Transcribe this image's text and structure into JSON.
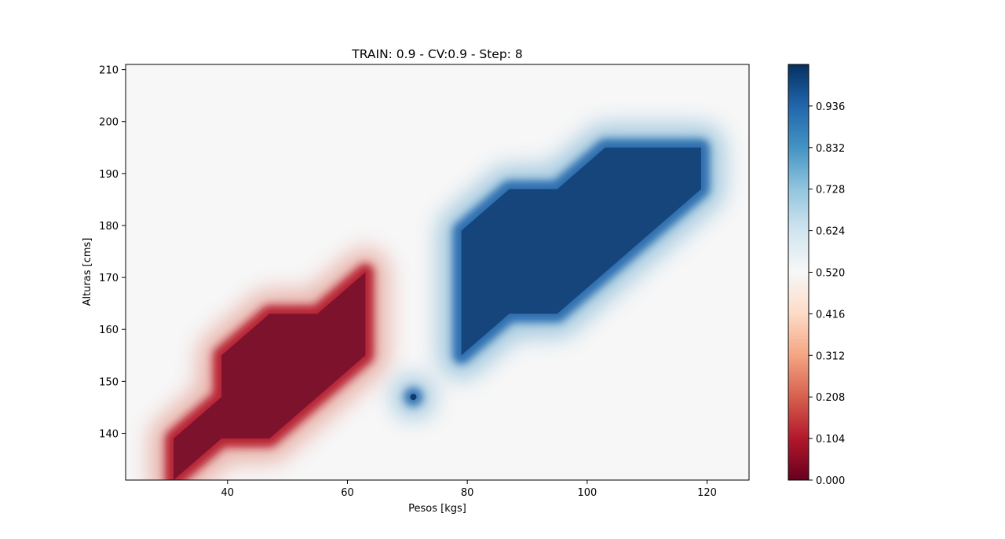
{
  "chart_data": {
    "type": "heatmap",
    "title": "TRAIN: 0.9 - CV:0.9 - Step: 8",
    "xlabel": "Pesos [kgs]",
    "ylabel": "Alturas [cms]",
    "xlim": [
      23,
      127
    ],
    "ylim": [
      131,
      211
    ],
    "xticks": [
      40,
      60,
      80,
      100,
      120
    ],
    "yticks": [
      140,
      150,
      160,
      170,
      180,
      190,
      200,
      210
    ],
    "grid": false,
    "colormap": "RdBu",
    "colorbar": {
      "range": [
        0.0,
        1.04
      ],
      "ticks": [
        0.0,
        0.104,
        0.208,
        0.312,
        0.416,
        0.52,
        0.624,
        0.728,
        0.832,
        0.936
      ],
      "tick_labels": [
        "0.000",
        "0.104",
        "0.208",
        "0.312",
        "0.416",
        "0.520",
        "0.624",
        "0.728",
        "0.832",
        "0.936"
      ]
    },
    "background_value": 0.52,
    "regions": [
      {
        "class": "low",
        "value": 0.0,
        "vertices": [
          [
            31,
            131
          ],
          [
            31,
            139
          ],
          [
            39,
            147
          ],
          [
            39,
            155
          ],
          [
            47,
            163
          ],
          [
            55,
            163
          ],
          [
            63,
            171
          ],
          [
            63,
            155
          ],
          [
            55,
            147
          ],
          [
            47,
            139
          ],
          [
            39,
            139
          ],
          [
            31,
            131
          ]
        ]
      },
      {
        "class": "high",
        "value": 1.0,
        "vertices": [
          [
            79,
            155
          ],
          [
            79,
            179
          ],
          [
            87,
            187
          ],
          [
            95,
            187
          ],
          [
            103,
            195
          ],
          [
            119,
            195
          ],
          [
            119,
            187
          ],
          [
            95,
            163
          ],
          [
            87,
            163
          ],
          [
            79,
            155
          ]
        ]
      },
      {
        "class": "high-point",
        "value": 1.0,
        "vertices": [
          [
            71,
            147
          ]
        ]
      }
    ]
  }
}
